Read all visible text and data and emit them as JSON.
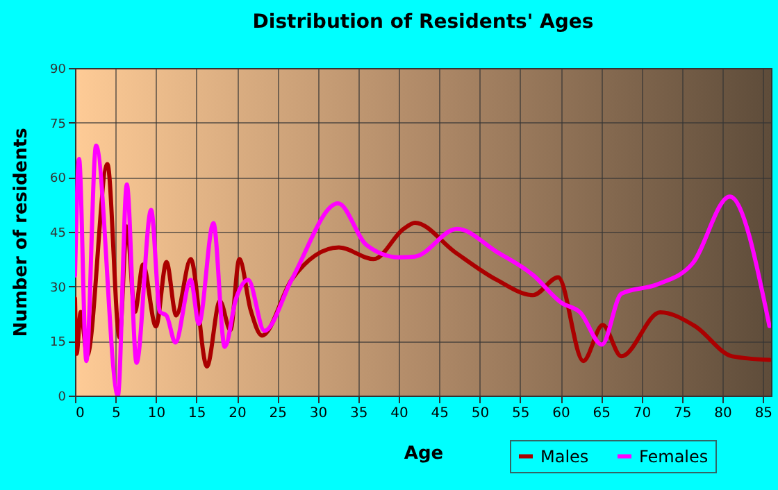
{
  "chart_data": {
    "type": "line",
    "title": "Distribution of Residents' Ages",
    "xlabel": "Age",
    "ylabel": "Number of residents",
    "xlim": [
      0,
      86
    ],
    "xticks": [
      0,
      5,
      10,
      15,
      20,
      25,
      30,
      35,
      40,
      45,
      50,
      55,
      60,
      65,
      70,
      75,
      80,
      85
    ],
    "ylim": [
      0,
      90
    ],
    "yticks": [
      0,
      15,
      30,
      45,
      60,
      75,
      90
    ],
    "grid": true,
    "legend": "bottom right",
    "series": [
      {
        "name": "Males",
        "color": "#aa0000",
        "x": [
          0,
          0.2,
          0.7,
          1.5,
          4,
          5.5,
          6.4,
          7.4,
          8.4,
          10,
          11.3,
          12.5,
          14.3,
          16.3,
          17.9,
          19.2,
          20.3,
          21.7,
          23.1,
          26.8,
          32.6,
          36.9,
          40.6,
          42,
          46.9,
          52.1,
          56.6,
          59.7,
          62.8,
          65.2,
          67.5,
          72.3,
          76.6,
          81.2,
          85.8
        ],
        "values": [
          26.7,
          11.5,
          23,
          11,
          63.6,
          16,
          46.5,
          23,
          36,
          19,
          36.7,
          22,
          37.5,
          8,
          26,
          18,
          37.5,
          23.5,
          16.5,
          32,
          40.7,
          37.5,
          45.8,
          47.5,
          39.5,
          31.8,
          27.6,
          32.5,
          9.5,
          19.4,
          10.8,
          22.9,
          19.1,
          10.8,
          9.8
        ]
      },
      {
        "name": "Females",
        "color": "#ff00ff",
        "x": [
          0,
          0.5,
          1.4,
          2.6,
          5.3,
          6.4,
          7.6,
          9.4,
          10.5,
          11.3,
          12.4,
          14.3,
          15.3,
          17.1,
          18.5,
          19.9,
          21.4,
          23.4,
          26.8,
          32.5,
          36,
          40,
          42,
          47.2,
          52.1,
          56.6,
          60.1,
          62.4,
          65.1,
          67.5,
          72,
          76.3,
          80.9,
          85.8
        ],
        "values": [
          33,
          65,
          9.5,
          68.7,
          0,
          58,
          9,
          51,
          23,
          22,
          14.6,
          31.8,
          19.7,
          47.4,
          13.4,
          26.7,
          31.8,
          17.8,
          32,
          52.8,
          41.4,
          38,
          38.2,
          45.8,
          39.5,
          33.1,
          25.5,
          22.9,
          14,
          28,
          30.6,
          36.3,
          54.7,
          19.1
        ]
      }
    ]
  }
}
